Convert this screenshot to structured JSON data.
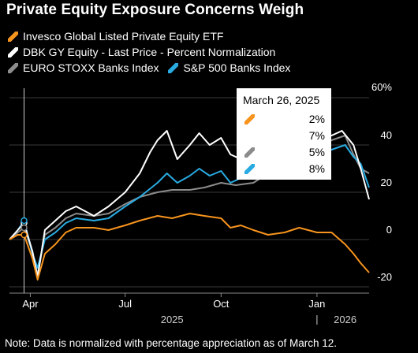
{
  "title": "Private Equity Exposure Concerns Weigh",
  "note": "Note: Data is normalized with percentage appreciation as of March 12.",
  "tooltip": {
    "title": "March 26, 2025",
    "values": [
      "2%",
      "7%",
      "5%",
      "8%"
    ]
  },
  "chart_data": {
    "type": "line",
    "x_start": "2025-03-12",
    "x_end": "2026-02-20",
    "x_ticks": [
      {
        "label": "Apr",
        "date": "2025-04-01"
      },
      {
        "label": "Jul",
        "date": "2025-07-01"
      },
      {
        "label": "Oct",
        "date": "2025-10-01"
      },
      {
        "label": "Jan",
        "date": "2026-01-01"
      }
    ],
    "year_labels": [
      {
        "label": "2025",
        "date": "2025-08-15"
      },
      {
        "label": "2026",
        "date": "2026-01-28"
      }
    ],
    "y_ticks": [
      -20,
      0,
      20,
      40,
      60
    ],
    "y_tick_labels": [
      "-20",
      "0",
      "20",
      "40",
      "60%"
    ],
    "ylim": [
      -22,
      62
    ],
    "grid": true,
    "marker_date": "2025-03-26",
    "series": [
      {
        "name": "Invesco Global Listed Private Equity ETF",
        "color": "#f7941d",
        "points": [
          [
            "2025-03-12",
            0
          ],
          [
            "2025-03-20",
            2
          ],
          [
            "2025-03-26",
            2
          ],
          [
            "2025-04-03",
            -8
          ],
          [
            "2025-04-08",
            -17
          ],
          [
            "2025-04-15",
            -6
          ],
          [
            "2025-04-25",
            -2
          ],
          [
            "2025-05-05",
            3
          ],
          [
            "2025-05-15",
            5
          ],
          [
            "2025-06-01",
            5
          ],
          [
            "2025-06-15",
            4
          ],
          [
            "2025-07-01",
            6
          ],
          [
            "2025-07-15",
            8
          ],
          [
            "2025-08-01",
            10
          ],
          [
            "2025-08-15",
            9
          ],
          [
            "2025-09-01",
            11
          ],
          [
            "2025-09-15",
            10
          ],
          [
            "2025-10-01",
            9
          ],
          [
            "2025-10-10",
            5
          ],
          [
            "2025-10-20",
            6
          ],
          [
            "2025-11-01",
            4
          ],
          [
            "2025-11-15",
            2
          ],
          [
            "2025-12-01",
            3
          ],
          [
            "2025-12-15",
            5
          ],
          [
            "2026-01-01",
            3
          ],
          [
            "2026-01-15",
            3
          ],
          [
            "2026-01-28",
            -2
          ],
          [
            "2026-02-05",
            -6
          ],
          [
            "2026-02-12",
            -10
          ],
          [
            "2026-02-20",
            -14
          ]
        ]
      },
      {
        "name": "DBK GY Equity - Last Price - Percent Normalization",
        "color": "#ffffff",
        "points": [
          [
            "2025-03-12",
            0
          ],
          [
            "2025-03-20",
            4
          ],
          [
            "2025-03-26",
            7
          ],
          [
            "2025-04-03",
            -5
          ],
          [
            "2025-04-08",
            -16
          ],
          [
            "2025-04-15",
            4
          ],
          [
            "2025-04-25",
            8
          ],
          [
            "2025-05-05",
            12
          ],
          [
            "2025-05-15",
            14
          ],
          [
            "2025-06-01",
            10
          ],
          [
            "2025-06-15",
            14
          ],
          [
            "2025-07-01",
            20
          ],
          [
            "2025-07-15",
            28
          ],
          [
            "2025-07-25",
            37
          ],
          [
            "2025-08-01",
            42
          ],
          [
            "2025-08-10",
            46
          ],
          [
            "2025-08-20",
            34
          ],
          [
            "2025-09-01",
            40
          ],
          [
            "2025-09-10",
            45
          ],
          [
            "2025-09-20",
            40
          ],
          [
            "2025-10-01",
            43
          ],
          [
            "2025-10-10",
            36
          ],
          [
            "2025-10-20",
            34
          ],
          [
            "2025-11-01",
            36
          ],
          [
            "2025-11-15",
            40
          ],
          [
            "2025-12-01",
            42
          ],
          [
            "2025-12-15",
            44
          ],
          [
            "2026-01-01",
            45
          ],
          [
            "2026-01-15",
            44
          ],
          [
            "2026-01-25",
            46
          ],
          [
            "2026-02-05",
            40
          ],
          [
            "2026-02-12",
            30
          ],
          [
            "2026-02-20",
            17
          ]
        ]
      },
      {
        "name": "EURO STOXX Banks Index",
        "color": "#8c8c8c",
        "points": [
          [
            "2025-03-12",
            0
          ],
          [
            "2025-03-20",
            3
          ],
          [
            "2025-03-26",
            5
          ],
          [
            "2025-04-03",
            -5
          ],
          [
            "2025-04-08",
            -15
          ],
          [
            "2025-04-15",
            2
          ],
          [
            "2025-04-25",
            5
          ],
          [
            "2025-05-05",
            9
          ],
          [
            "2025-05-15",
            11
          ],
          [
            "2025-06-01",
            10
          ],
          [
            "2025-06-15",
            11
          ],
          [
            "2025-07-01",
            15
          ],
          [
            "2025-07-15",
            18
          ],
          [
            "2025-08-01",
            20
          ],
          [
            "2025-08-15",
            21
          ],
          [
            "2025-09-01",
            21
          ],
          [
            "2025-09-15",
            22
          ],
          [
            "2025-10-01",
            24
          ],
          [
            "2025-10-15",
            23
          ],
          [
            "2025-11-01",
            24
          ],
          [
            "2025-11-15",
            28
          ],
          [
            "2025-12-01",
            33
          ],
          [
            "2025-12-15",
            36
          ],
          [
            "2026-01-01",
            40
          ],
          [
            "2026-01-15",
            42
          ],
          [
            "2026-01-28",
            44
          ],
          [
            "2026-02-05",
            36
          ],
          [
            "2026-02-12",
            30
          ],
          [
            "2026-02-20",
            28
          ]
        ]
      },
      {
        "name": "S&P 500 Banks Index",
        "color": "#29abe2",
        "points": [
          [
            "2025-03-12",
            0
          ],
          [
            "2025-03-20",
            4
          ],
          [
            "2025-03-26",
            8
          ],
          [
            "2025-04-03",
            -6
          ],
          [
            "2025-04-08",
            -12
          ],
          [
            "2025-04-15",
            0
          ],
          [
            "2025-04-25",
            3
          ],
          [
            "2025-05-05",
            7
          ],
          [
            "2025-05-15",
            9
          ],
          [
            "2025-06-01",
            8
          ],
          [
            "2025-06-15",
            9
          ],
          [
            "2025-07-01",
            14
          ],
          [
            "2025-07-15",
            18
          ],
          [
            "2025-08-01",
            24
          ],
          [
            "2025-08-10",
            28
          ],
          [
            "2025-08-20",
            24
          ],
          [
            "2025-09-01",
            27
          ],
          [
            "2025-09-10",
            30
          ],
          [
            "2025-09-20",
            27
          ],
          [
            "2025-10-01",
            29
          ],
          [
            "2025-10-10",
            24
          ],
          [
            "2025-10-20",
            26
          ],
          [
            "2025-11-01",
            27
          ],
          [
            "2025-11-15",
            32
          ],
          [
            "2025-12-01",
            35
          ],
          [
            "2025-12-15",
            37
          ],
          [
            "2026-01-01",
            39
          ],
          [
            "2026-01-15",
            38
          ],
          [
            "2026-01-28",
            40
          ],
          [
            "2026-02-05",
            35
          ],
          [
            "2026-02-12",
            32
          ],
          [
            "2026-02-20",
            22
          ]
        ]
      }
    ]
  }
}
